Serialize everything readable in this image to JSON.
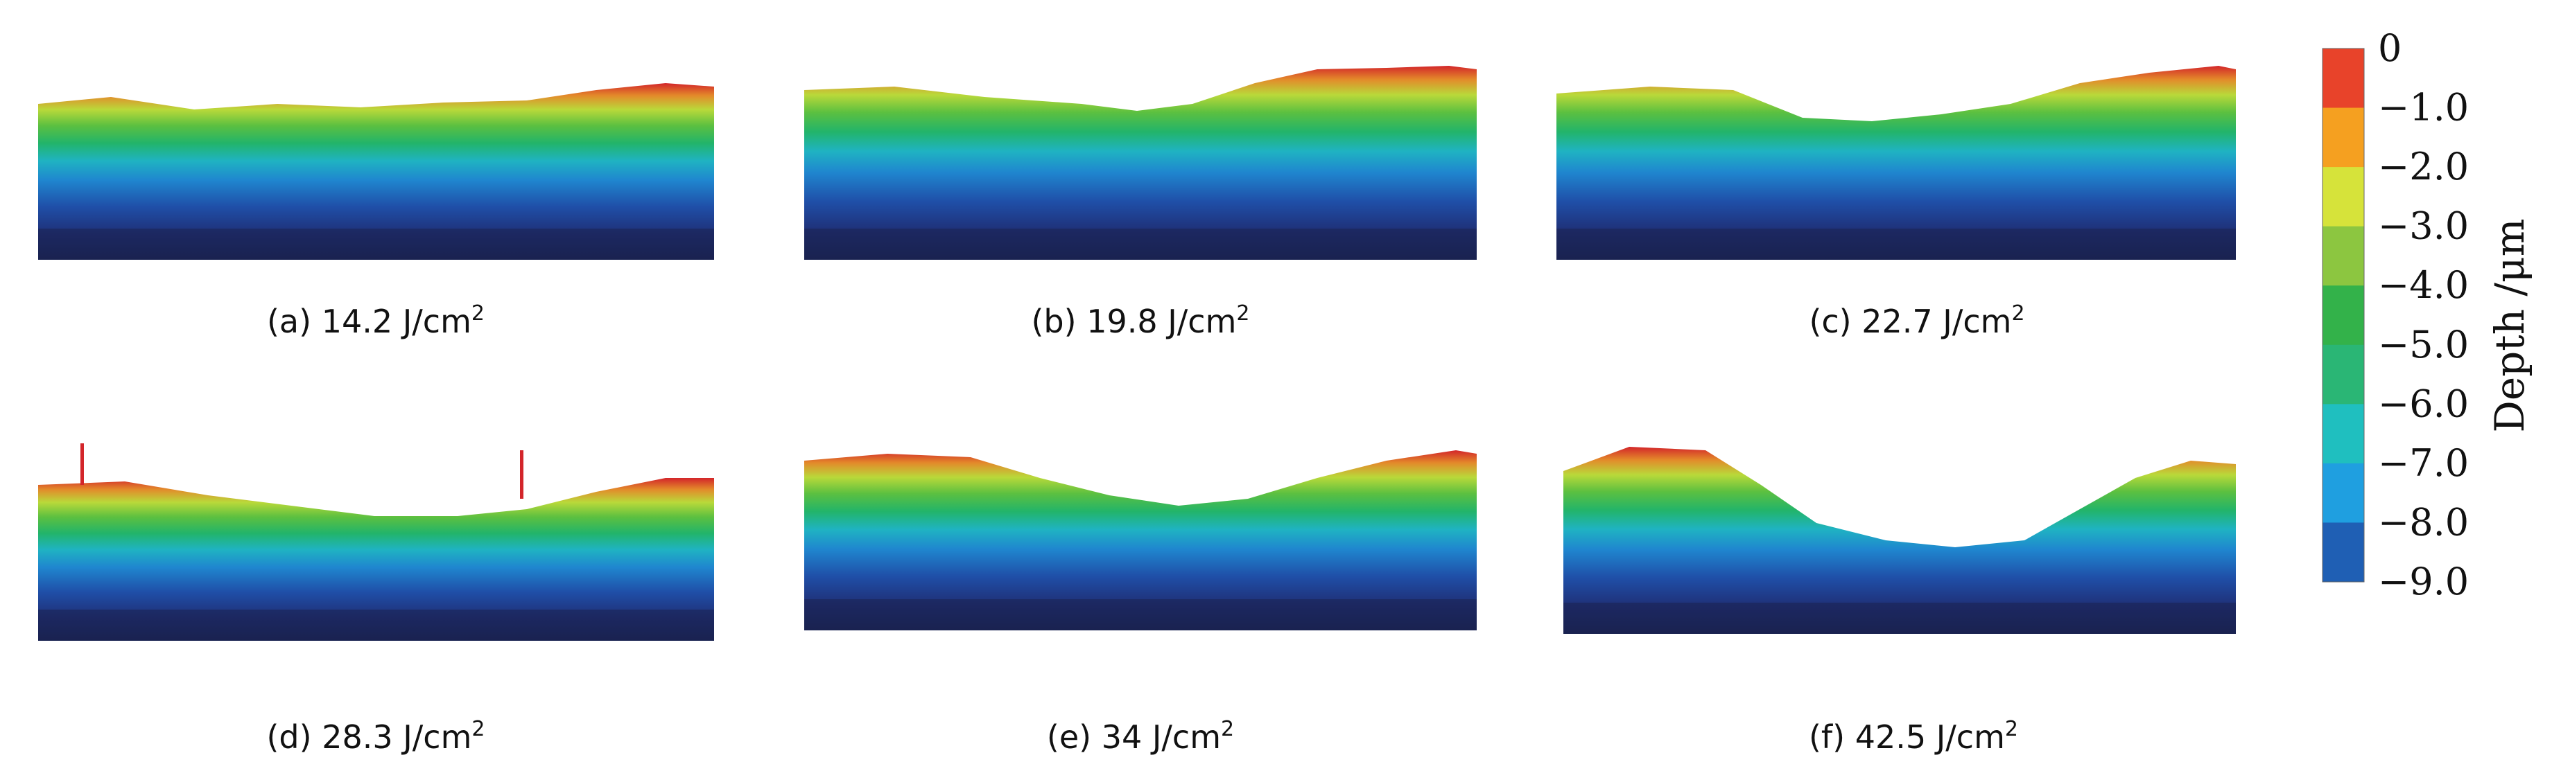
{
  "panels": [
    {
      "caption": "(a) 14.2 J/cm",
      "fluence": 14.2,
      "unit_sup": "2"
    },
    {
      "caption": "(b) 19.8 J/cm",
      "fluence": 19.8,
      "unit_sup": "2"
    },
    {
      "caption": "(c) 22.7 J/cm",
      "fluence": 22.7,
      "unit_sup": "2"
    },
    {
      "caption": "(d) 28.3 J/cm",
      "fluence": 28.3,
      "unit_sup": "2"
    },
    {
      "caption": "(e) 34 J/cm",
      "fluence": 34,
      "unit_sup": "2"
    },
    {
      "caption": "(f) 42.5 J/cm",
      "fluence": 42.5,
      "unit_sup": "2"
    }
  ],
  "colorbar": {
    "label": "Depth /μm",
    "ticks": [
      "0",
      "−1.0",
      "−2.0",
      "−3.0",
      "−4.0",
      "−5.0",
      "−6.0",
      "−7.0",
      "−8.0",
      "−9.0"
    ],
    "colors": [
      "#e8432a",
      "#f5a020",
      "#d6e33a",
      "#8cc640",
      "#33b24a",
      "#2ab675",
      "#1fbfbf",
      "#1f9fe0",
      "#1f5fb4"
    ]
  }
}
